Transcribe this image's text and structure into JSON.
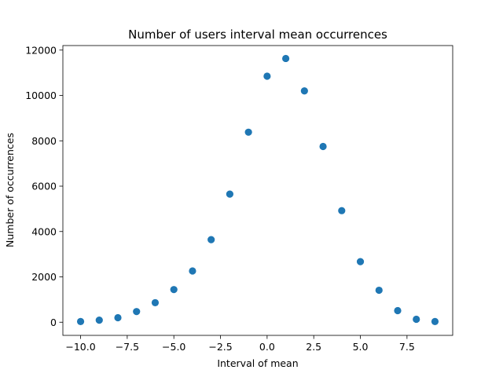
{
  "chart_data": {
    "type": "scatter",
    "title": "Number of users interval mean occurrences",
    "xlabel": "Interval of mean",
    "ylabel": "Number of occurrences",
    "xlim": [
      -10.95,
      9.95
    ],
    "ylim": [
      -580,
      12200
    ],
    "xticks": [
      -10.0,
      -7.5,
      -5.0,
      -2.5,
      0.0,
      2.5,
      5.0,
      7.5
    ],
    "xtick_labels": [
      "−10.0",
      "−7.5",
      "−5.0",
      "−2.5",
      "0.0",
      "2.5",
      "5.0",
      "7.5"
    ],
    "yticks": [
      0,
      2000,
      4000,
      6000,
      8000,
      10000,
      12000
    ],
    "ytick_labels": [
      "0",
      "2000",
      "4000",
      "6000",
      "8000",
      "10000",
      "12000"
    ],
    "grid": false,
    "marker_color": "#1f77b4",
    "x": [
      -10,
      -9,
      -8,
      -7,
      -6,
      -5,
      -4,
      -3,
      -2,
      -1,
      0,
      1,
      2,
      3,
      4,
      5,
      6,
      7,
      8,
      9
    ],
    "y": [
      30,
      90,
      200,
      470,
      860,
      1440,
      2260,
      3640,
      5650,
      8380,
      10850,
      11630,
      10200,
      7750,
      4920,
      2670,
      1410,
      510,
      130,
      30
    ]
  }
}
